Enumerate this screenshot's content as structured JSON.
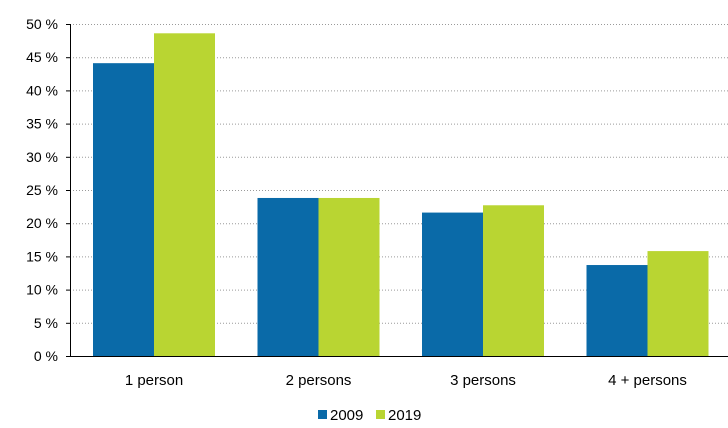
{
  "chart_data": {
    "type": "bar",
    "categories": [
      "1 person",
      "2 persons",
      "3 persons",
      "4 + persons"
    ],
    "series": [
      {
        "name": "2009",
        "values": [
          44.1,
          23.8,
          21.6,
          13.7
        ],
        "color": "#0a6aa8"
      },
      {
        "name": "2019",
        "values": [
          48.6,
          23.8,
          22.7,
          15.8
        ],
        "color": "#b9d532"
      }
    ],
    "y_ticks": [
      "0 %",
      "5 %",
      "10 %",
      "15 %",
      "20 %",
      "25 %",
      "30 %",
      "35 %",
      "40 %",
      "45 %",
      "50 %"
    ],
    "ylim": [
      0,
      50
    ],
    "grid": true,
    "grid_style": "dotted",
    "legend_position": "bottom-center"
  }
}
